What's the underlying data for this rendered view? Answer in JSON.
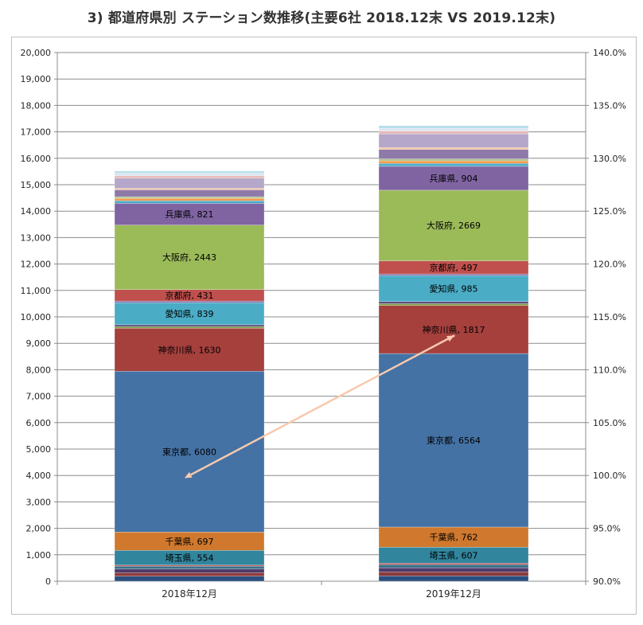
{
  "chart_data": {
    "type": "bar",
    "stacked": true,
    "title": "3) 都道府県別 ステーション数推移(主要6社 2018.12末 VS 2019.12末)",
    "categories": [
      "2018年12月",
      "2019年12月"
    ],
    "ylim": [
      0,
      20000
    ],
    "ytick_step": 1000,
    "ytick_labels": [
      "0",
      "1,000",
      "2,000",
      "3,000",
      "4,000",
      "5,000",
      "6,000",
      "7,000",
      "8,000",
      "9,000",
      "10,000",
      "11,000",
      "12,000",
      "13,000",
      "14,000",
      "15,000",
      "16,000",
      "17,000",
      "18,000",
      "19,000",
      "20,000"
    ],
    "y2lim": [
      90.0,
      140.0
    ],
    "y2tick_labels": [
      "90.0%",
      "95.0%",
      "100.0%",
      "105.0%",
      "110.0%",
      "115.0%",
      "120.0%",
      "125.0%",
      "130.0%",
      "135.0%",
      "140.0%"
    ],
    "grid": true,
    "series": [
      {
        "values": [
          190,
          200
        ],
        "color": "#2a4f7f"
      },
      {
        "values": [
          130,
          150
        ],
        "color": "#8b3a3a"
      },
      {
        "values": [
          140,
          160
        ],
        "color": "#4f3b6b"
      },
      {
        "values": [
          110,
          120
        ],
        "color": "#3a6f8a"
      },
      {
        "values": [
          40,
          50
        ],
        "color": "#c0504d"
      },
      {
        "name": "埼玉県",
        "label": "埼玉県, 554",
        "values": [
          554,
          607
        ],
        "color": "#31859c"
      },
      {
        "name": "千葉県",
        "label2018": "千葉県, 697",
        "label2019": "千葉県, 762",
        "values": [
          697,
          762
        ],
        "color": "#d0792e"
      },
      {
        "name": "東京都",
        "values": [
          6080,
          6564
        ],
        "color": "#4472a4"
      },
      {
        "name": "神奈川県",
        "values": [
          1630,
          1817
        ],
        "color": "#a5403d"
      },
      {
        "values": [
          60,
          70
        ],
        "color": "#7b9a3f"
      },
      {
        "values": [
          70,
          80
        ],
        "color": "#5f4d80"
      },
      {
        "name": "愛知県",
        "values": [
          839,
          985
        ],
        "color": "#4bacc6"
      },
      {
        "values": [
          60,
          60
        ],
        "color": "#8064a2"
      },
      {
        "name": "京都府",
        "values": [
          431,
          497
        ],
        "color": "#c0504d"
      },
      {
        "name": "大阪府",
        "values": [
          2443,
          2669
        ],
        "color": "#9bbb59"
      },
      {
        "name": "兵庫県",
        "values": [
          821,
          904
        ],
        "color": "#8064a2"
      },
      {
        "values": [
          100,
          110
        ],
        "color": "#4bacc6"
      },
      {
        "values": [
          80,
          90
        ],
        "color": "#f79646"
      },
      {
        "values": [
          70,
          80
        ],
        "color": "#b3c58a"
      },
      {
        "values": [
          260,
          360
        ],
        "color": "#8d7aa8"
      },
      {
        "values": [
          60,
          70
        ],
        "color": "#f2c4a2"
      },
      {
        "values": [
          380,
          520
        ],
        "color": "#b4a7c9"
      },
      {
        "values": [
          90,
          100
        ],
        "color": "#e6b9b8"
      },
      {
        "values": [
          100,
          110
        ],
        "color": "#dbe5f1"
      },
      {
        "values": [
          80,
          100
        ],
        "color": "#b7dee8"
      }
    ],
    "bar_labels": [
      [
        "",
        "",
        "",
        "",
        "",
        "埼玉県, 554",
        "千葉県, 697",
        "東京都, 6080",
        "神奈川県, 1630",
        "",
        "",
        "愛知県, 839",
        "",
        "京都府, 431",
        "大阪府, 2443",
        "兵庫県, 821",
        "",
        "",
        "",
        "",
        "",
        "",
        "",
        "",
        ""
      ],
      [
        "",
        "",
        "",
        "",
        "",
        "埼玉県, 607",
        "千葉県, 762",
        "東京都, 6564",
        "神奈川県, 1817",
        "",
        "",
        "愛知県, 985",
        "",
        "京都府, 497",
        "大阪府, 2669",
        "兵庫県, 904",
        "",
        "",
        "",
        "",
        "",
        "",
        "",
        "",
        ""
      ]
    ],
    "line_series": {
      "axis": "secondary",
      "values": [
        100.0,
        113.2
      ],
      "color": "#f8c9ad",
      "arrow": true
    }
  }
}
